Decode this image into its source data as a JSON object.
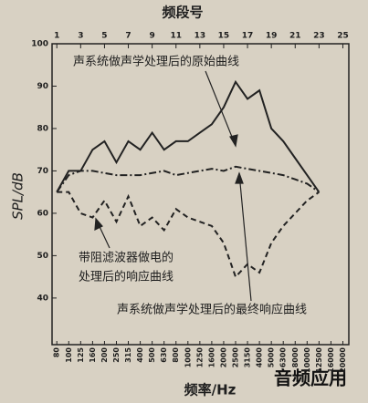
{
  "chart_data": {
    "type": "line",
    "title": "频段号",
    "xlabel": "频率/Hz",
    "ylabel": "SPL/dB",
    "x": [
      1,
      2,
      3,
      4,
      5,
      6,
      7,
      8,
      9,
      10,
      11,
      12,
      13,
      14,
      15,
      16,
      17,
      18,
      19,
      20,
      21,
      22,
      23
    ],
    "xlim": [
      0.6,
      25.5
    ],
    "x2ticks": [
      1,
      3,
      5,
      7,
      9,
      11,
      13,
      15,
      17,
      19,
      21,
      23,
      25
    ],
    "xticks": [
      {
        "value": 1,
        "label": "80"
      },
      {
        "value": 2,
        "label": "100"
      },
      {
        "value": 3,
        "label": "125"
      },
      {
        "value": 4,
        "label": "160"
      },
      {
        "value": 5,
        "label": "200"
      },
      {
        "value": 6,
        "label": "250"
      },
      {
        "value": 7,
        "label": "315"
      },
      {
        "value": 8,
        "label": "400"
      },
      {
        "value": 9,
        "label": "500"
      },
      {
        "value": 10,
        "label": "630"
      },
      {
        "value": 11,
        "label": "800"
      },
      {
        "value": 12,
        "label": "1000"
      },
      {
        "value": 13,
        "label": "1250"
      },
      {
        "value": 14,
        "label": "1600"
      },
      {
        "value": 15,
        "label": "2000"
      },
      {
        "value": 16,
        "label": "2500"
      },
      {
        "value": 17,
        "label": "3150"
      },
      {
        "value": 18,
        "label": "4000"
      },
      {
        "value": 19,
        "label": "5000"
      },
      {
        "value": 20,
        "label": "6300"
      },
      {
        "value": 21,
        "label": "8000"
      },
      {
        "value": 22,
        "label": "10000"
      },
      {
        "value": 23,
        "label": "12500"
      },
      {
        "value": 24,
        "label": "16000"
      },
      {
        "value": 25,
        "label": "20000"
      }
    ],
    "ylim": [
      29,
      100
    ],
    "yticks": [
      40,
      50,
      60,
      70,
      80,
      90,
      100
    ],
    "series": [
      {
        "name": "声系统做声学处理后的原始曲线",
        "color": "#222",
        "dash": "solid",
        "values": [
          65,
          70,
          70,
          75,
          77,
          72,
          77,
          75,
          79,
          75,
          77,
          77,
          79,
          81,
          85,
          91,
          87,
          89,
          80,
          77,
          73,
          69,
          65
        ]
      },
      {
        "name": "声系统做声学处理后的最终响应曲线",
        "color": "#222",
        "dash": "dashdot",
        "values": [
          65,
          69,
          70,
          70,
          69.5,
          69,
          69,
          69,
          69.5,
          70,
          69,
          69.5,
          70,
          70.5,
          70,
          71,
          70.5,
          70,
          69.5,
          69,
          68,
          67,
          65
        ]
      },
      {
        "name": "带阻滤波器做电的处理后的响应曲线",
        "color": "#222",
        "dash": "dash",
        "values": [
          65,
          65,
          60,
          59,
          63,
          58,
          64,
          57,
          59,
          56,
          61,
          59,
          58,
          57,
          53,
          45,
          48,
          46,
          53,
          57,
          60,
          63,
          65
        ]
      }
    ],
    "annotations": [
      "声系统做声学处理后的原始曲线",
      "带阻滤波器做电的",
      "处理后的响应曲线",
      "声系统做声学处理后的最终响应曲线"
    ],
    "watermark": "音频应用"
  }
}
